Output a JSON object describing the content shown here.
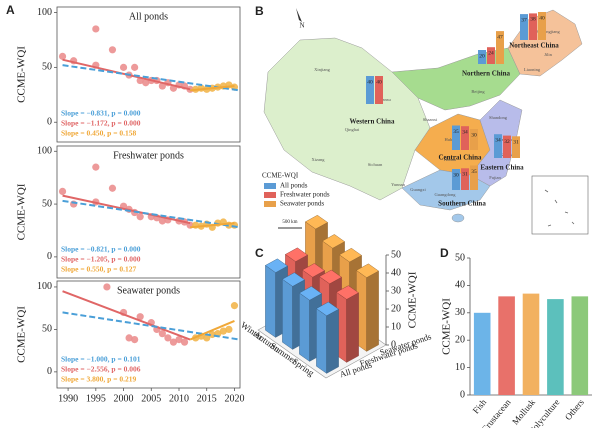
{
  "chart_data": [
    {
      "type": "scatter",
      "panel_label": "A",
      "subtitle": "All ponds",
      "ylabel": "CCME-WQI",
      "xlim": [
        1988,
        2021
      ],
      "ylim": [
        -18,
        105
      ],
      "yticks": [
        0,
        50,
        100
      ],
      "points": [
        {
          "color": "#eb8f8f",
          "x": [
            1989,
            1991,
            1995,
            1995,
            1998,
            2000,
            2001,
            2002,
            2003,
            2004,
            2005,
            2006,
            2007,
            2008,
            2009,
            2010,
            2011,
            2012
          ],
          "values": [
            60,
            56,
            85,
            52,
            66,
            50,
            43,
            50,
            38,
            36,
            38,
            38,
            33,
            36,
            31,
            34,
            33,
            30
          ]
        },
        {
          "color": "#f2b64e",
          "x": [
            2013,
            2014,
            2015,
            2016,
            2017,
            2018,
            2019,
            2020
          ],
          "values": [
            30,
            31,
            30,
            31,
            32,
            33,
            34,
            32
          ]
        }
      ],
      "trend_lines": [
        {
          "color": "#e06666",
          "dash": false,
          "x": [
            1989,
            2012
          ],
          "values": [
            57,
            30
          ]
        },
        {
          "color": "#4a9fd8",
          "dash": true,
          "x": [
            1989,
            2021
          ],
          "values": [
            52,
            29
          ]
        },
        {
          "color": "#f0a838",
          "dash": false,
          "x": [
            2012,
            2020
          ],
          "values": [
            29,
            33
          ]
        }
      ],
      "annotations": [
        {
          "text": "Slope = −0.831, p = 0.000",
          "color": "#4a9fd8"
        },
        {
          "text": "Slope = −1.172, p = 0.000",
          "color": "#e06666"
        },
        {
          "text": "Slope = 0.450, p = 0.158",
          "color": "#f0a838"
        }
      ]
    },
    {
      "type": "scatter",
      "subtitle": "Freshwater ponds",
      "ylabel": "CCME-WQI",
      "xlim": [
        1988,
        2021
      ],
      "ylim": [
        -20,
        105
      ],
      "yticks": [
        0,
        50,
        100
      ],
      "points": [
        {
          "color": "#eb8f8f",
          "x": [
            1989,
            1991,
            1995,
            1995,
            1998,
            2000,
            2001,
            2002,
            2003,
            2005,
            2006,
            2007,
            2008,
            2010,
            2011,
            2012
          ],
          "values": [
            62,
            50,
            85,
            52,
            65,
            48,
            45,
            42,
            38,
            38,
            37,
            34,
            35,
            34,
            33,
            30
          ]
        },
        {
          "color": "#f2b64e",
          "x": [
            2013,
            2014,
            2015,
            2016,
            2017,
            2018,
            2019,
            2020
          ],
          "values": [
            30,
            29,
            31,
            28,
            32,
            33,
            30,
            30
          ]
        }
      ],
      "trend_lines": [
        {
          "color": "#e06666",
          "dash": false,
          "x": [
            1989,
            2012
          ],
          "values": [
            58,
            32
          ]
        },
        {
          "color": "#4a9fd8",
          "dash": true,
          "x": [
            1989,
            2021
          ],
          "values": [
            53,
            28
          ]
        },
        {
          "color": "#f0a838",
          "dash": false,
          "x": [
            2012,
            2020
          ],
          "values": [
            28,
            32
          ]
        }
      ],
      "annotations": [
        {
          "text": "Slope = −0.821, p = 0.000",
          "color": "#4a9fd8"
        },
        {
          "text": "Slope = −1.205, p = 0.000",
          "color": "#e06666"
        },
        {
          "text": "Slope = 0.550, p = 0.127",
          "color": "#f0a838"
        }
      ]
    },
    {
      "type": "scatter",
      "subtitle": "Seawater ponds",
      "ylabel": "CCME-WQI",
      "xlim": [
        1988,
        2021
      ],
      "ylim": [
        -19,
        107
      ],
      "yticks": [
        0,
        50,
        100
      ],
      "xticks": [
        1990,
        1995,
        2000,
        2005,
        2010,
        2015,
        2020
      ],
      "points": [
        {
          "color": "#eb8f8f",
          "x": [
            1997,
            2000,
            2001,
            2002,
            2003,
            2005,
            2006,
            2007,
            2008,
            2009,
            2010,
            2011
          ],
          "values": [
            100,
            70,
            40,
            38,
            65,
            58,
            50,
            45,
            40,
            35,
            38,
            35
          ]
        },
        {
          "color": "#f2b64e",
          "x": [
            2013,
            2014,
            2015,
            2016,
            2017,
            2018,
            2019,
            2020
          ],
          "values": [
            40,
            42,
            40,
            44,
            45,
            48,
            50,
            78
          ]
        }
      ],
      "trend_lines": [
        {
          "color": "#e06666",
          "dash": false,
          "x": [
            1989,
            2012
          ],
          "values": [
            95,
            38
          ]
        },
        {
          "color": "#4a9fd8",
          "dash": true,
          "x": [
            1989,
            2021
          ],
          "values": [
            70,
            38
          ]
        },
        {
          "color": "#f0a838",
          "dash": false,
          "x": [
            2012,
            2020
          ],
          "values": [
            38,
            60
          ]
        }
      ],
      "annotations": [
        {
          "text": "Slope = −1.000, p = 0.101",
          "color": "#4a9fd8"
        },
        {
          "text": "Slope = −2.556, p = 0.006",
          "color": "#e06666"
        },
        {
          "text": "Slope = 3.800, p = 0.219",
          "color": "#f0a838"
        }
      ]
    },
    {
      "type": "bar3d",
      "panel_label": "C",
      "zlabel": "CCME-WQI",
      "categories": [
        "Winter",
        "Autumn",
        "Summer",
        "Spring"
      ],
      "series": [
        {
          "name": "All ponds",
          "color": "#5b9bd5",
          "values": [
            36,
            35,
            34,
            32
          ]
        },
        {
          "name": "Freshwater ponds",
          "color": "#e0625a",
          "values": [
            36,
            34,
            37,
            35
          ]
        },
        {
          "name": "Seawater ponds",
          "color": "#e8a04a",
          "values": [
            48,
            44,
            43,
            41
          ]
        }
      ],
      "zlim": [
        0,
        50
      ],
      "zticks": [
        0,
        10,
        20,
        30,
        40,
        50
      ]
    },
    {
      "type": "bar",
      "panel_label": "D",
      "ylabel": "CCME-WQI",
      "categories": [
        "Fish",
        "Crustacean",
        "Mollusk",
        "Polyculture",
        "Others"
      ],
      "values": [
        30,
        36,
        37,
        35,
        36
      ],
      "colors": [
        "#6cb4e8",
        "#e8716a",
        "#f2b160",
        "#5cc0bc",
        "#8cc97a"
      ],
      "ylim": [
        0,
        50
      ],
      "yticks": [
        0,
        10,
        20,
        30,
        40,
        50
      ]
    }
  ],
  "map": {
    "panel_label": "B",
    "compass": "N",
    "scale": "500 km",
    "legend_title": "CCME-WQI",
    "legend": [
      {
        "name": "All ponds",
        "color": "#5b9bd5"
      },
      {
        "name": "Freshwater ponds",
        "color": "#e0625a"
      },
      {
        "name": "Seawater ponds",
        "color": "#e8a04a"
      }
    ],
    "regions": [
      {
        "name": "Northeast China",
        "values": [
          37,
          38,
          40
        ]
      },
      {
        "name": "Northern China",
        "values": [
          20,
          24,
          47
        ]
      },
      {
        "name": "Western China",
        "values": [
          40,
          40
        ]
      },
      {
        "name": "Central China",
        "values": [
          35,
          34,
          30
        ]
      },
      {
        "name": "Eastern China",
        "values": [
          34,
          32,
          31
        ]
      },
      {
        "name": "Southern China",
        "values": [
          30,
          31,
          35
        ]
      }
    ],
    "place_labels": [
      "Xinjiang",
      "Xizang",
      "Qinghai",
      "Gansu",
      "Sichuan",
      "Yunnan",
      "Heilongjiang",
      "Jilin",
      "Liaoning",
      "Beijing",
      "Shandong",
      "Jiangsu",
      "Hubei",
      "Hunan",
      "Guangdong",
      "Guangxi",
      "Fujian",
      "Zhejiang",
      "Shaanxi"
    ]
  }
}
